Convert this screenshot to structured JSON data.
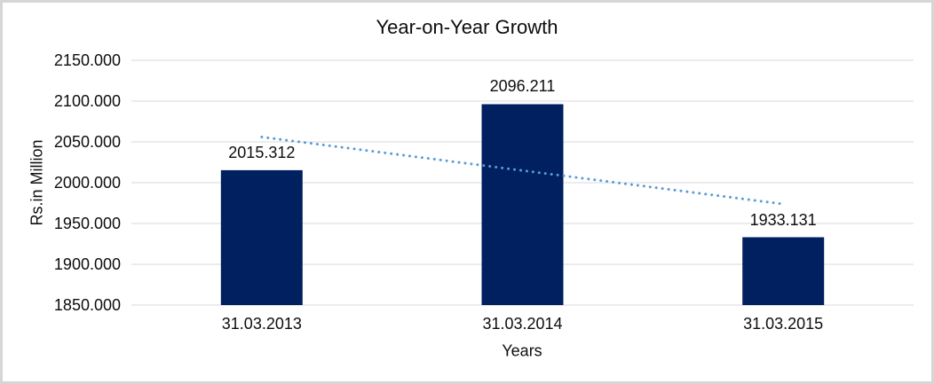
{
  "chart_data": {
    "type": "bar",
    "title": "Year-on-Year Growth",
    "categories": [
      "31.03.2013",
      "31.03.2014",
      "31.03.2015"
    ],
    "values": [
      2015.312,
      2096.211,
      1933.131
    ],
    "data_labels": [
      "2015.312",
      "2096.211",
      "1933.131"
    ],
    "xlabel": "Years",
    "ylabel": "Rs.in Million",
    "ylim": [
      1850,
      2150
    ],
    "ytick_step": 50,
    "ytick_labels": [
      "2150.000",
      "2100.000",
      "2050.000",
      "2000.000",
      "1950.000",
      "1900.000",
      "1850.000"
    ],
    "grid": true,
    "legend": "none",
    "trendline": {
      "type": "linear",
      "style": "dotted",
      "endpoints": [
        2056.0,
        1973.8
      ],
      "color": "#5B9BD5"
    },
    "colors": {
      "bar": "#002060",
      "gridline": "#D9D9D9",
      "text": "#0d0d0d",
      "frame_border": "#D6D6D6",
      "background": "#FFFFFF"
    }
  }
}
